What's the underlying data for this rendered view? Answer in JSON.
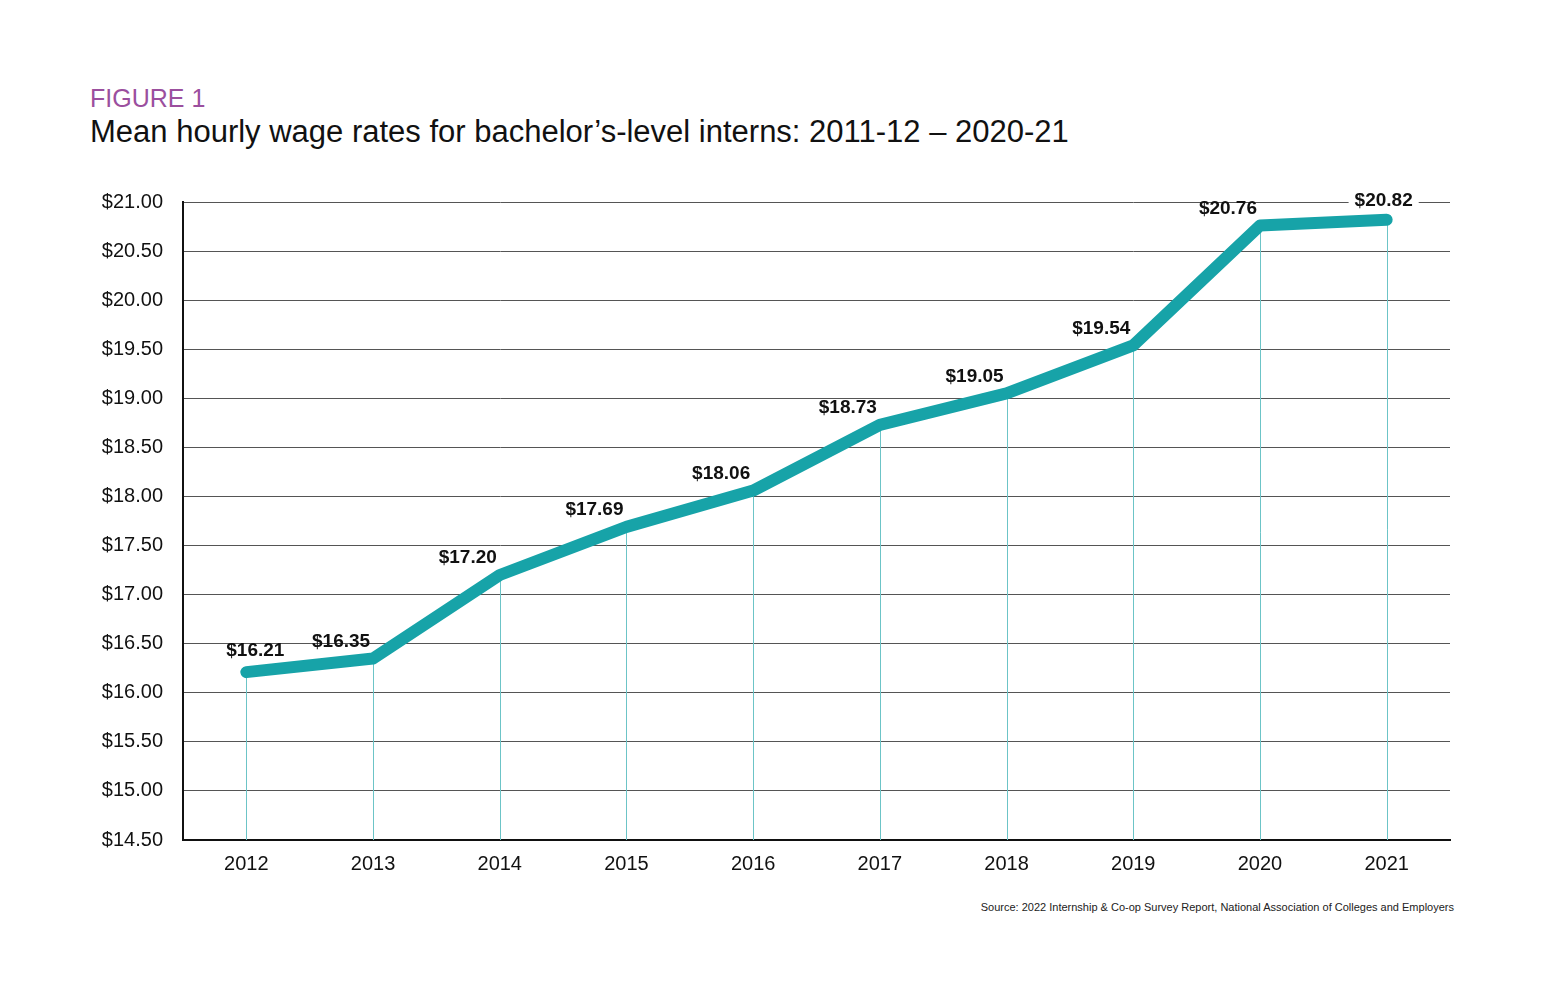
{
  "chart_data": {
    "type": "line",
    "figure_label": "FIGURE 1",
    "title": "Mean hourly wage rates for bachelor’s-level interns: 2011-12 – 2020-21",
    "source": "Source: 2022 Internship & Co-op Survey Report, National Association of Colleges and Employers",
    "categories": [
      "2012",
      "2013",
      "2014",
      "2015",
      "2016",
      "2017",
      "2018",
      "2019",
      "2020",
      "2021"
    ],
    "values": [
      16.21,
      16.35,
      17.2,
      17.69,
      18.06,
      18.73,
      19.05,
      19.54,
      20.76,
      20.82
    ],
    "value_labels": [
      "$16.21",
      "$16.35",
      "$17.20",
      "$17.69",
      "$18.06",
      "$18.73",
      "$19.05",
      "$19.54",
      "$20.76",
      "$20.82"
    ],
    "color": "#17a3a8",
    "ylim": [
      14.5,
      21
    ],
    "yticks": [
      {
        "value": 14.5,
        "label": "$14.50"
      },
      {
        "value": 15,
        "label": "$15.00"
      },
      {
        "value": 15.5,
        "label": "$15.50"
      },
      {
        "value": 16,
        "label": "$16.00"
      },
      {
        "value": 16.5,
        "label": "$16.50"
      },
      {
        "value": 17,
        "label": "$17.00"
      },
      {
        "value": 17.5,
        "label": "$17.50"
      },
      {
        "value": 18,
        "label": "$18.00"
      },
      {
        "value": 18.5,
        "label": "$18.50"
      },
      {
        "value": 19,
        "label": "$19.00"
      },
      {
        "value": 19.5,
        "label": "$19.50"
      },
      {
        "value": 20,
        "label": "$20.00"
      },
      {
        "value": 20.5,
        "label": "$20.50"
      },
      {
        "value": 21,
        "label": "$21.00"
      }
    ],
    "grid": true,
    "data_labels": true
  }
}
